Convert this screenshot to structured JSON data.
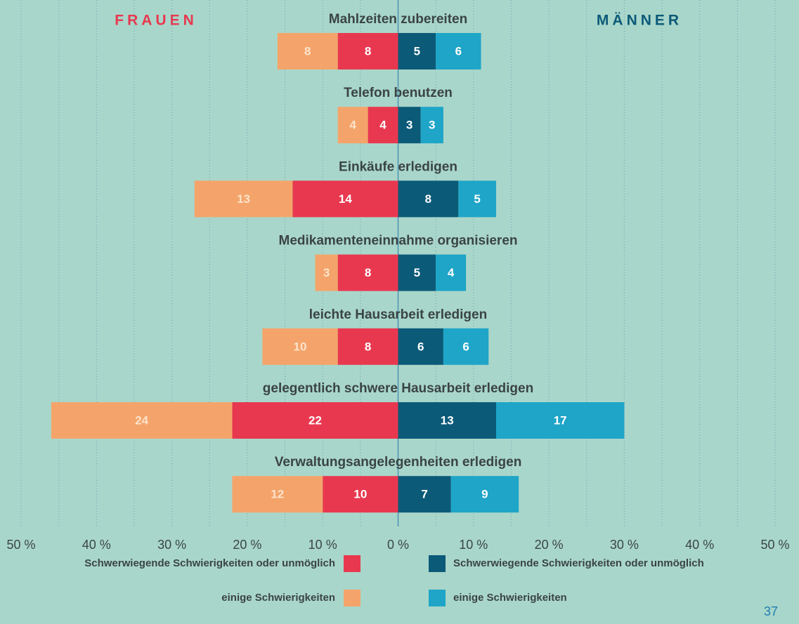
{
  "chart_data": {
    "type": "diverging-bar",
    "side_labels": {
      "left": "FRAUEN",
      "right": "MÄNNER"
    },
    "categories": [
      "Mahlzeiten zubereiten",
      "Telefon benutzen",
      "Einkäufe erledigen",
      "Medikamenteneinnahme organisieren",
      "leichte Hausarbeit erledigen",
      "gelegentlich schwere Hausarbeit erledigen",
      "Verwaltungsangelegenheiten erledigen"
    ],
    "series": [
      {
        "name": "Schwerwiegende Schwierigkeiten oder unmöglich",
        "side": "left",
        "color": "#e8384f",
        "values": [
          8,
          4,
          14,
          8,
          8,
          22,
          10
        ]
      },
      {
        "name": "einige Schwierigkeiten",
        "side": "left",
        "color": "#f4a46a",
        "values": [
          8,
          4,
          13,
          3,
          10,
          24,
          12
        ]
      },
      {
        "name": "Schwerwiegende Schwierigkeiten oder unmöglich",
        "side": "right",
        "color": "#0b5a78",
        "values": [
          5,
          3,
          8,
          5,
          6,
          13,
          7
        ]
      },
      {
        "name": "einige Schwierigkeiten",
        "side": "right",
        "color": "#1ea5c8",
        "values": [
          6,
          3,
          5,
          4,
          6,
          17,
          9
        ]
      }
    ],
    "xlim": [
      -50,
      50
    ],
    "xticks": [
      {
        "value": -50,
        "label": "50 %"
      },
      {
        "value": -40,
        "label": "40 %"
      },
      {
        "value": -30,
        "label": "30 %"
      },
      {
        "value": -20,
        "label": "20 %"
      },
      {
        "value": -10,
        "label": "10 %"
      },
      {
        "value": 0,
        "label": "0 %"
      },
      {
        "value": 10,
        "label": "10 %"
      },
      {
        "value": 20,
        "label": "20 %"
      },
      {
        "value": 30,
        "label": "30 %"
      },
      {
        "value": 40,
        "label": "40 %"
      },
      {
        "value": 50,
        "label": "50 %"
      }
    ],
    "xgrid": [
      -50,
      -45,
      -40,
      -35,
      -30,
      -25,
      -20,
      -15,
      -10,
      -5,
      5,
      10,
      15,
      20,
      25,
      30,
      35,
      40,
      45,
      50
    ],
    "page_number": "37"
  }
}
